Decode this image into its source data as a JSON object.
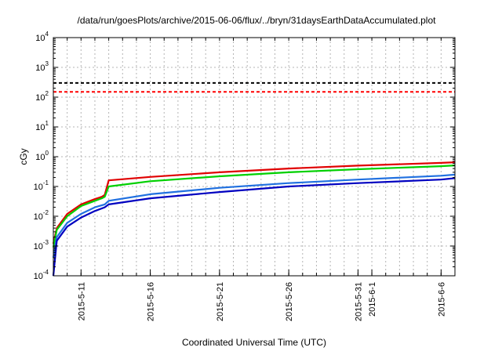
{
  "chart_data": {
    "type": "line",
    "title": "/data/run/goesPlots/archive/2015-06-06/flux/../bryn/31daysEarthDataAccumulated.plot",
    "xlabel": "Coordinated Universal Time (UTC)",
    "ylabel": "cGy",
    "yscale": "log",
    "ylim": [
      0.0001,
      10000
    ],
    "xlim": [
      "2015-05-09",
      "2015-06-07"
    ],
    "grid": true,
    "y_ticks": [
      {
        "mant": "10",
        "exp": "-4",
        "value": 0.0001
      },
      {
        "mant": "10",
        "exp": "-3",
        "value": 0.001
      },
      {
        "mant": "10",
        "exp": "-2",
        "value": 0.01
      },
      {
        "mant": "10",
        "exp": "-1",
        "value": 0.1
      },
      {
        "mant": "10",
        "exp": "0",
        "value": 1
      },
      {
        "mant": "10",
        "exp": "1",
        "value": 10
      },
      {
        "mant": "10",
        "exp": "2",
        "value": 100
      },
      {
        "mant": "10",
        "exp": "3",
        "value": 1000
      },
      {
        "mant": "10",
        "exp": "4",
        "value": 10000
      }
    ],
    "x_ticks": [
      {
        "label": "2015-5-11",
        "date": "2015-05-11"
      },
      {
        "label": "2015-5-16",
        "date": "2015-05-16"
      },
      {
        "label": "2015-5-21",
        "date": "2015-05-21"
      },
      {
        "label": "2015-5-26",
        "date": "2015-05-26"
      },
      {
        "label": "2015-5-31",
        "date": "2015-05-31"
      },
      {
        "label": "2015-6-1",
        "date": "2015-06-01"
      },
      {
        "label": "2015-6-6",
        "date": "2015-06-06"
      }
    ],
    "thresholds": [
      {
        "value": 300,
        "color": "#000000",
        "style": "dashed"
      },
      {
        "value": 150,
        "color": "#ff0000",
        "style": "dashed"
      }
    ],
    "series": [
      {
        "color": "#e00000",
        "x": [
          "2015-05-09",
          "2015-05-09 06:00",
          "2015-05-10",
          "2015-05-11",
          "2015-05-12",
          "2015-05-12 12:00",
          "2015-05-12 17:00",
          "2015-05-13",
          "2015-05-16",
          "2015-05-21",
          "2015-05-26",
          "2015-05-31",
          "2015-06-06",
          "2015-06-07"
        ],
        "y": [
          0.0012,
          0.004,
          0.012,
          0.025,
          0.038,
          0.045,
          0.052,
          0.16,
          0.21,
          0.3,
          0.4,
          0.5,
          0.62,
          0.65
        ]
      },
      {
        "color": "#00d000",
        "x": [
          "2015-05-09",
          "2015-05-09 06:00",
          "2015-05-10",
          "2015-05-11",
          "2015-05-12",
          "2015-05-12 12:00",
          "2015-05-12 17:00",
          "2015-05-13",
          "2015-05-16",
          "2015-05-21",
          "2015-05-26",
          "2015-05-31",
          "2015-06-06",
          "2015-06-07"
        ],
        "y": [
          0.0009,
          0.0035,
          0.01,
          0.022,
          0.033,
          0.04,
          0.045,
          0.1,
          0.15,
          0.22,
          0.3,
          0.38,
          0.48,
          0.51
        ]
      },
      {
        "color": "#2070e0",
        "x": [
          "2015-05-09",
          "2015-05-09 06:00",
          "2015-05-10",
          "2015-05-11",
          "2015-05-12",
          "2015-05-12 17:00",
          "2015-05-13",
          "2015-05-16",
          "2015-05-21",
          "2015-05-26",
          "2015-05-31",
          "2015-06-06",
          "2015-06-07"
        ],
        "y": [
          0.0004,
          0.002,
          0.006,
          0.012,
          0.02,
          0.025,
          0.033,
          0.055,
          0.09,
          0.13,
          0.17,
          0.23,
          0.25
        ]
      },
      {
        "color": "#0000c0",
        "x": [
          "2015-05-09",
          "2015-05-09 06:00",
          "2015-05-10",
          "2015-05-11",
          "2015-05-12",
          "2015-05-12 17:00",
          "2015-05-13",
          "2015-05-16",
          "2015-05-21",
          "2015-05-26",
          "2015-05-31",
          "2015-06-06",
          "2015-06-07"
        ],
        "y": [
          0.0001,
          0.0015,
          0.0045,
          0.009,
          0.015,
          0.02,
          0.025,
          0.04,
          0.065,
          0.1,
          0.13,
          0.17,
          0.19
        ]
      }
    ]
  }
}
